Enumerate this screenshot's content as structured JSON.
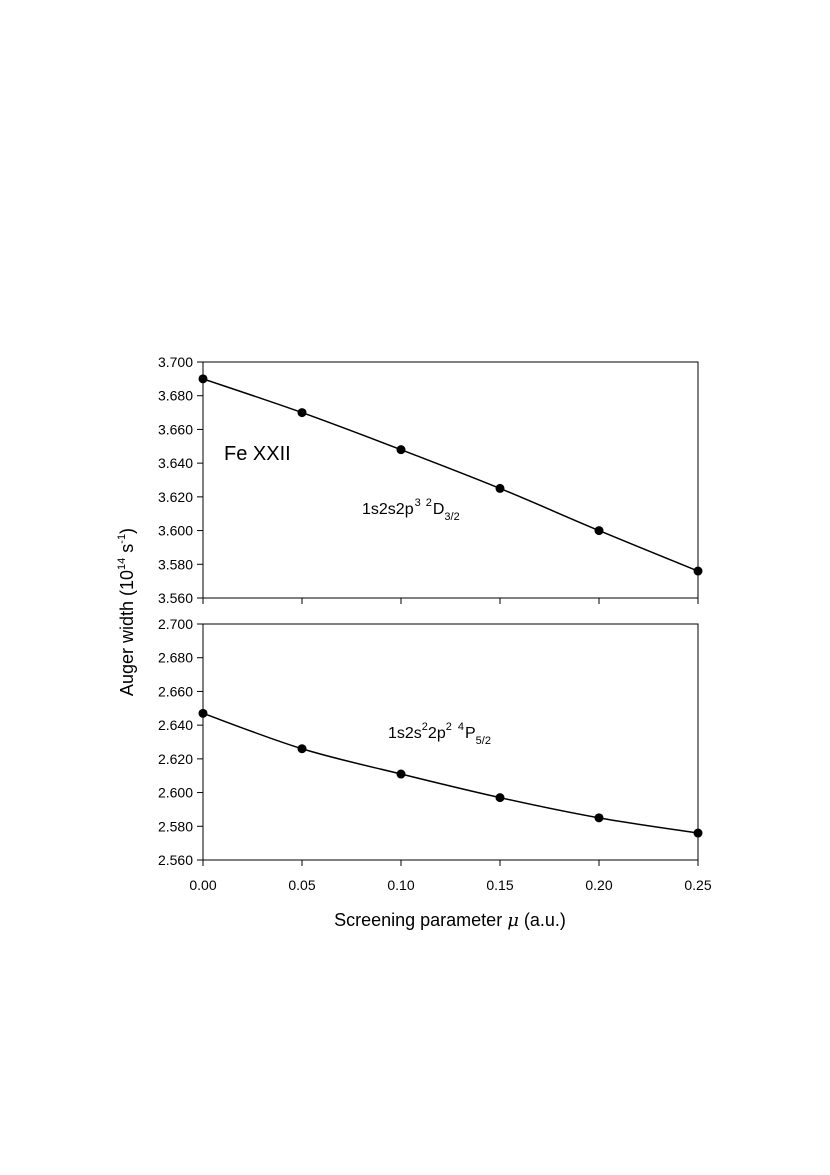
{
  "chart_data": [
    {
      "type": "line",
      "panel": "top",
      "x": [
        0.0,
        0.05,
        0.1,
        0.15,
        0.2,
        0.25
      ],
      "series": [
        {
          "values": [
            3.69,
            3.67,
            3.648,
            3.625,
            3.6,
            3.576
          ]
        }
      ],
      "xlim": [
        0.0,
        0.25
      ],
      "ylim": [
        3.56,
        3.7
      ],
      "yticks": [
        "3.560",
        "3.580",
        "3.600",
        "3.620",
        "3.640",
        "3.660",
        "3.680",
        "3.700"
      ],
      "annotations": {
        "element": "Fe XXII",
        "state": {
          "main": "1s2s2p",
          "sup1": "3",
          "sup2": "2",
          "letter": "D",
          "sub": "3/2"
        }
      },
      "grid": false
    },
    {
      "type": "line",
      "panel": "bottom",
      "x": [
        0.0,
        0.05,
        0.1,
        0.15,
        0.2,
        0.25
      ],
      "series": [
        {
          "values": [
            2.647,
            2.626,
            2.611,
            2.597,
            2.585,
            2.576
          ]
        }
      ],
      "xlim": [
        0.0,
        0.25
      ],
      "ylim": [
        2.56,
        2.7
      ],
      "xticks": [
        "0.00",
        "0.05",
        "0.10",
        "0.15",
        "0.20",
        "0.25"
      ],
      "yticks": [
        "2.560",
        "2.580",
        "2.600",
        "2.620",
        "2.640",
        "2.660",
        "2.680",
        "2.700"
      ],
      "annotations": {
        "state": {
          "a": "1s2s",
          "sup1": "2",
          "b": "2p",
          "sup2": "2",
          "sup3": "4",
          "letter": "P",
          "sub": "5/2"
        }
      },
      "grid": false
    }
  ],
  "axes": {
    "ylabel": {
      "main": "Auger width (10",
      "sup1": "14",
      "mid": " s",
      "sup2": "-1",
      "end": ")"
    },
    "xlabel": {
      "before": "Screening parameter ",
      "mu": "μ",
      "after": " (a.u.)"
    }
  }
}
